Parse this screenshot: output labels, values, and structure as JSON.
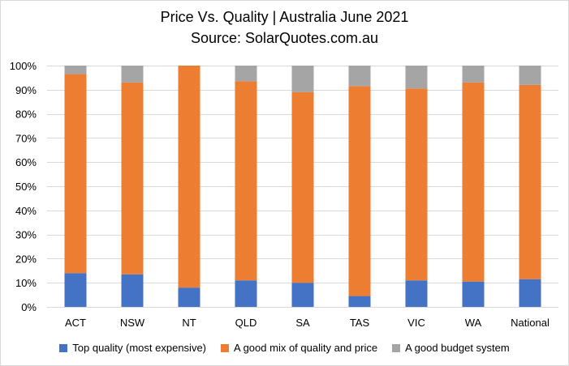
{
  "chart_data": {
    "type": "bar",
    "stacked": true,
    "title": "Price Vs. Quality | Australia June 2021",
    "subtitle": "Source: SolarQuotes.com.au",
    "categories": [
      "ACT",
      "NSW",
      "NT",
      "QLD",
      "SA",
      "TAS",
      "VIC",
      "WA",
      "National"
    ],
    "series": [
      {
        "name": "Top quality (most expensive)",
        "color": "#4472c4",
        "values": [
          14,
          13.5,
          8,
          11,
          10,
          4.5,
          11,
          10.5,
          11.5
        ]
      },
      {
        "name": "A good mix of quality and price",
        "color": "#ed7d31",
        "values": [
          82.5,
          79.5,
          92,
          82.5,
          79,
          87,
          79.5,
          82.5,
          80.5
        ]
      },
      {
        "name": "A good budget system",
        "color": "#a5a5a5",
        "values": [
          3.5,
          7,
          0,
          6.5,
          11,
          8.5,
          9.5,
          7,
          8
        ]
      }
    ],
    "ylim": [
      0,
      100
    ],
    "yticks": [
      0,
      10,
      20,
      30,
      40,
      50,
      60,
      70,
      80,
      90,
      100
    ],
    "ytick_labels": [
      "0%",
      "10%",
      "20%",
      "30%",
      "40%",
      "50%",
      "60%",
      "70%",
      "80%",
      "90%",
      "100%"
    ],
    "xlabel": "",
    "ylabel": "",
    "grid": true,
    "legend_position": "bottom",
    "gridline_color": "#d9d9d9"
  }
}
